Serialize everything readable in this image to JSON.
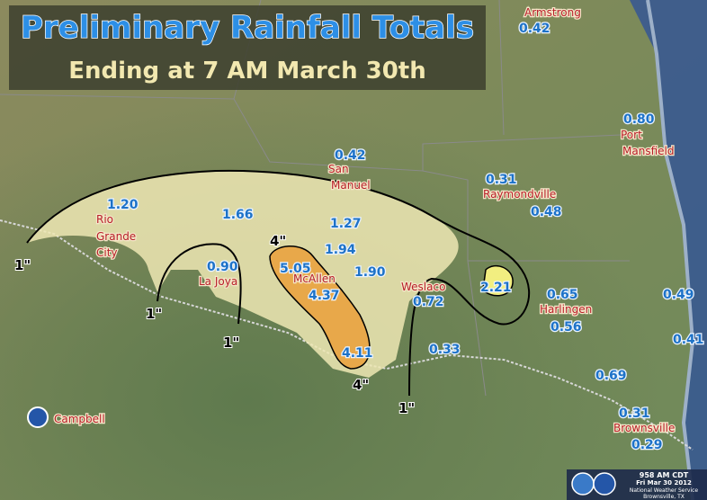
{
  "title": "Preliminary Rainfall Totals",
  "subtitle": "Ending at 7 AM March 30th",
  "place_names": [
    "Armstrong",
    "Port",
    "Mansfield",
    "San",
    "Manuel",
    "Rio",
    "Grande",
    "City",
    "Raymondville",
    "La Joya",
    "McAllen",
    "Weslaco",
    "Harlingen",
    "Brownsville"
  ],
  "rainfall_values": [
    "0.42",
    "0.80",
    "0.42",
    "1.20",
    "0.31",
    "0.48",
    "0.90",
    "1.66",
    "1.27",
    "1.94",
    "5.05",
    "1.90",
    "4.37",
    "0.72",
    "2.21",
    "0.65",
    "0.56",
    "4.11",
    "0.33",
    "0.49",
    "0.41",
    "0.69",
    "0.31",
    "0.29"
  ],
  "contour_labels": [
    "1\"",
    "1\"",
    "1\"",
    "1\"",
    "4\"",
    "4\""
  ],
  "office": "Campbell",
  "stamp": [
    "958 AM CDT",
    "Fri Mar 30 2012",
    "National Weather Service",
    "Brownsville, TX"
  ]
}
